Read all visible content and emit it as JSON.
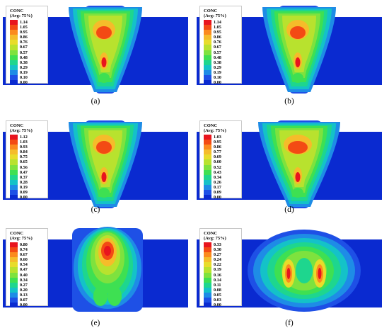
{
  "figure": {
    "panels": [
      {
        "id": "a",
        "label": "(a)",
        "legend": {
          "title": "CONC",
          "subtitle": "(Avg: 75%)",
          "values": [
            "1.14",
            "1.05",
            "0.95",
            "0.86",
            "0.76",
            "0.67",
            "0.57",
            "0.48",
            "0.38",
            "0.29",
            "0.19",
            "0.10",
            "0.00"
          ]
        },
        "shape": "weld"
      },
      {
        "id": "b",
        "label": "(b)",
        "legend": {
          "title": "CONC",
          "subtitle": "(Avg: 75%)",
          "values": [
            "1.14",
            "1.05",
            "0.95",
            "0.86",
            "0.76",
            "0.67",
            "0.57",
            "0.48",
            "0.38",
            "0.29",
            "0.19",
            "0.10",
            "0.00"
          ]
        },
        "shape": "weld"
      },
      {
        "id": "c",
        "label": "(c)",
        "legend": {
          "title": "CONC",
          "subtitle": "(Avg: 75%)",
          "values": [
            "1.12",
            "1.03",
            "0.93",
            "0.84",
            "0.75",
            "0.65",
            "0.56",
            "0.47",
            "0.37",
            "0.28",
            "0.19",
            "0.09",
            "0.00"
          ]
        },
        "shape": "weld"
      },
      {
        "id": "d",
        "label": "(d)",
        "legend": {
          "title": "CONC",
          "subtitle": "(Avg: 75%)",
          "values": [
            "1.03",
            "0.95",
            "0.86",
            "0.77",
            "0.69",
            "0.60",
            "0.52",
            "0.43",
            "0.34",
            "0.26",
            "0.17",
            "0.09",
            "0.00"
          ]
        },
        "shape": "weld-wide"
      },
      {
        "id": "e",
        "label": "(e)",
        "legend": {
          "title": "CONC",
          "subtitle": "(Avg: 75%)",
          "values": [
            "0.80",
            "0.74",
            "0.67",
            "0.60",
            "0.54",
            "0.47",
            "0.40",
            "0.34",
            "0.27",
            "0.20",
            "0.13",
            "0.07",
            "0.00"
          ]
        },
        "shape": "diffuse"
      },
      {
        "id": "f",
        "label": "(f)",
        "legend": {
          "title": "CONC",
          "subtitle": "(Avg: 75%)",
          "values": [
            "0.33",
            "0.30",
            "0.27",
            "0.24",
            "0.22",
            "0.19",
            "0.16",
            "0.14",
            "0.11",
            "0.08",
            "0.05",
            "0.03",
            "0.00"
          ]
        },
        "shape": "ring"
      }
    ],
    "colors": {
      "background": "#0a2ad0",
      "scale": [
        "#e8141e",
        "#f34a14",
        "#fb8a1e",
        "#f5bc2a",
        "#e8dc2a",
        "#b8e22e",
        "#7ee23e",
        "#3ee052",
        "#1ed68e",
        "#14c2c8",
        "#1e8ce6",
        "#1e50e6",
        "#0a2ad0"
      ]
    }
  }
}
